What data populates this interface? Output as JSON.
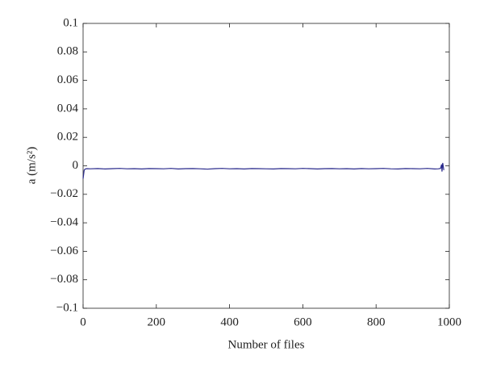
{
  "chart_data": {
    "type": "line",
    "xlabel": "Number of files",
    "ylabel": "a (m/s²)",
    "xlim": [
      0,
      1000
    ],
    "xticks": [
      0,
      200,
      400,
      600,
      800,
      1000
    ],
    "ylim": [
      -0.1,
      0.1
    ],
    "yticks": [
      {
        "value": -0.1,
        "label": "−0.1"
      },
      {
        "value": -0.08,
        "label": "−0.08"
      },
      {
        "value": -0.06,
        "label": "−0.06"
      },
      {
        "value": -0.04,
        "label": "−0.04"
      },
      {
        "value": -0.02,
        "label": "−0.02"
      },
      0,
      0.02,
      0.04,
      0.06,
      0.08,
      0.1
    ],
    "x": [
      0,
      3,
      6,
      10,
      20,
      40,
      60,
      80,
      100,
      120,
      140,
      160,
      180,
      200,
      220,
      240,
      260,
      280,
      300,
      320,
      340,
      360,
      380,
      400,
      420,
      440,
      460,
      480,
      500,
      520,
      540,
      560,
      580,
      600,
      620,
      640,
      660,
      680,
      700,
      720,
      740,
      760,
      780,
      800,
      820,
      840,
      860,
      880,
      900,
      920,
      940,
      960,
      970,
      976,
      979,
      980,
      982,
      985
    ],
    "series": [
      {
        "color": "#2a2a8c",
        "values": [
          -0.009,
          -0.003,
          -0.0022,
          -0.002,
          -0.0021,
          -0.0019,
          -0.0022,
          -0.002,
          -0.0018,
          -0.0021,
          -0.002,
          -0.0022,
          -0.0019,
          -0.002,
          -0.0021,
          -0.0018,
          -0.0022,
          -0.002,
          -0.0019,
          -0.0021,
          -0.0023,
          -0.002,
          -0.0018,
          -0.0021,
          -0.002,
          -0.0022,
          -0.0019,
          -0.002,
          -0.0021,
          -0.0022,
          -0.0019,
          -0.002,
          -0.0021,
          -0.0018,
          -0.002,
          -0.0022,
          -0.002,
          -0.0019,
          -0.0021,
          -0.002,
          -0.0022,
          -0.0019,
          -0.0021,
          -0.002,
          -0.0018,
          -0.0021,
          -0.0022,
          -0.0019,
          -0.002,
          -0.0021,
          -0.0018,
          -0.0022,
          -0.0021,
          -0.0018,
          0.001,
          -0.004,
          0.002,
          -0.003
        ]
      }
    ]
  }
}
